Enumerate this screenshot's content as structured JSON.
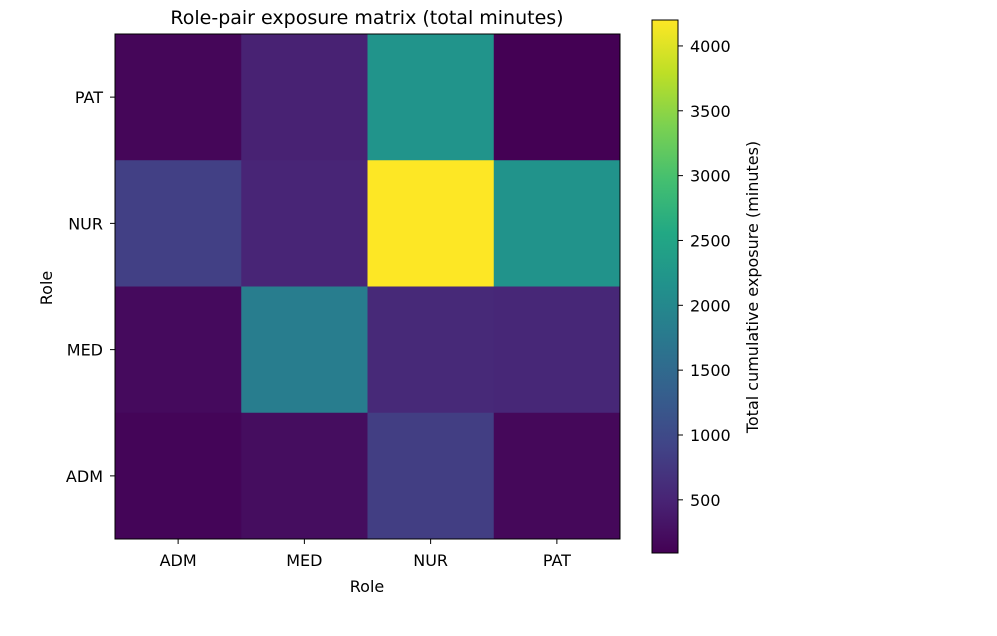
{
  "chart_data": {
    "type": "heatmap",
    "title": "Role-pair exposure matrix (total minutes)",
    "xlabel": "Role",
    "ylabel": "Role",
    "x_categories": [
      "ADM",
      "MED",
      "NUR",
      "PAT"
    ],
    "y_categories_top_to_bottom": [
      "PAT",
      "NUR",
      "MED",
      "ADM"
    ],
    "values_top_to_bottom": [
      [
        150,
        480,
        2200,
        90
      ],
      [
        860,
        520,
        4200,
        2180
      ],
      [
        200,
        1820,
        560,
        540
      ],
      [
        140,
        230,
        830,
        170
      ]
    ],
    "colorbar": {
      "label": "Total cumulative exposure (minutes)",
      "vmin": 90,
      "vmax": 4200,
      "ticks": [
        500,
        1000,
        1500,
        2000,
        2500,
        3000,
        3500,
        4000
      ],
      "colormap": "viridis"
    }
  }
}
